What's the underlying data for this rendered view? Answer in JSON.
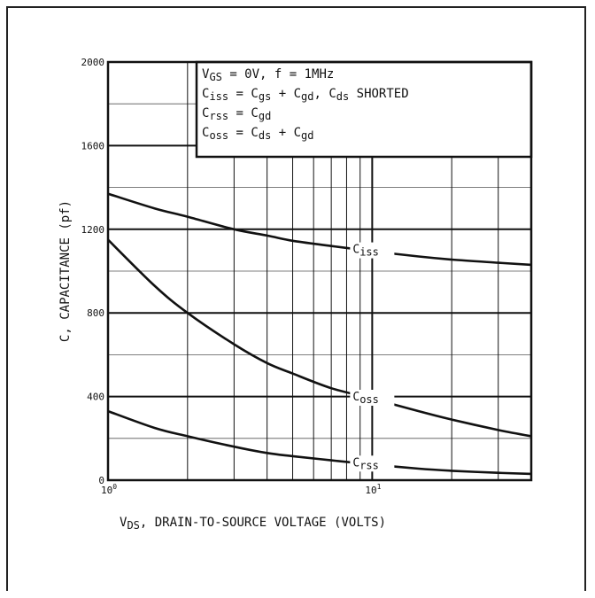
{
  "chart_data": {
    "type": "line",
    "x_scale": "log",
    "xlim": [
      1,
      40
    ],
    "ylim": [
      0,
      2000
    ],
    "grid": true,
    "y_ticks": [
      0,
      400,
      800,
      1200,
      1600,
      2000
    ],
    "x_tick_labels": [
      {
        "base": "10",
        "exp": "0",
        "value": 1
      },
      {
        "base": "10",
        "exp": "1",
        "value": 10
      }
    ],
    "ylabel": "C, CAPACITANCE (pf)",
    "xlabel": {
      "sym": "V",
      "sub": "DS",
      "rest": ", DRAIN-TO-SOURCE VOLTAGE (VOLTS)"
    },
    "legend_box": [
      {
        "parts": [
          [
            "V",
            ""
          ],
          [
            "GS",
            "sub"
          ],
          [
            " = 0V,  f = 1MHz",
            ""
          ]
        ]
      },
      {
        "parts": [
          [
            "C",
            ""
          ],
          [
            "iss",
            "sub"
          ],
          [
            " = C",
            ""
          ],
          [
            "gs",
            "sub"
          ],
          [
            " + C",
            ""
          ],
          [
            "gd",
            "sub"
          ],
          [
            ",  C",
            ""
          ],
          [
            "ds",
            "sub"
          ],
          [
            " SHORTED",
            ""
          ]
        ]
      },
      {
        "parts": [
          [
            "C",
            ""
          ],
          [
            "rss",
            "sub"
          ],
          [
            " = C",
            ""
          ],
          [
            "gd",
            "sub"
          ]
        ]
      },
      {
        "parts": [
          [
            "C",
            ""
          ],
          [
            "oss",
            "sub"
          ],
          [
            " = C",
            ""
          ],
          [
            "ds",
            "sub"
          ],
          [
            " + C",
            ""
          ],
          [
            "gd",
            "sub"
          ]
        ]
      }
    ],
    "series": [
      {
        "name": "C",
        "sub": "iss",
        "label_at": 10,
        "x": [
          1,
          1.5,
          2,
          3,
          4,
          5,
          7,
          10,
          15,
          20,
          30,
          40
        ],
        "y": [
          1370,
          1300,
          1260,
          1200,
          1170,
          1145,
          1120,
          1095,
          1070,
          1055,
          1040,
          1030
        ]
      },
      {
        "name": "C",
        "sub": "oss",
        "label_at": 10,
        "x": [
          1,
          1.5,
          2,
          3,
          4,
          5,
          7,
          10,
          15,
          20,
          30,
          40
        ],
        "y": [
          1150,
          930,
          800,
          650,
          560,
          510,
          440,
          390,
          330,
          290,
          240,
          210
        ]
      },
      {
        "name": "C",
        "sub": "rss",
        "label_at": 10,
        "x": [
          1,
          1.5,
          2,
          3,
          4,
          5,
          7,
          10,
          15,
          20,
          30,
          40
        ],
        "y": [
          330,
          250,
          210,
          160,
          130,
          115,
          95,
          75,
          55,
          45,
          35,
          30
        ]
      }
    ]
  }
}
